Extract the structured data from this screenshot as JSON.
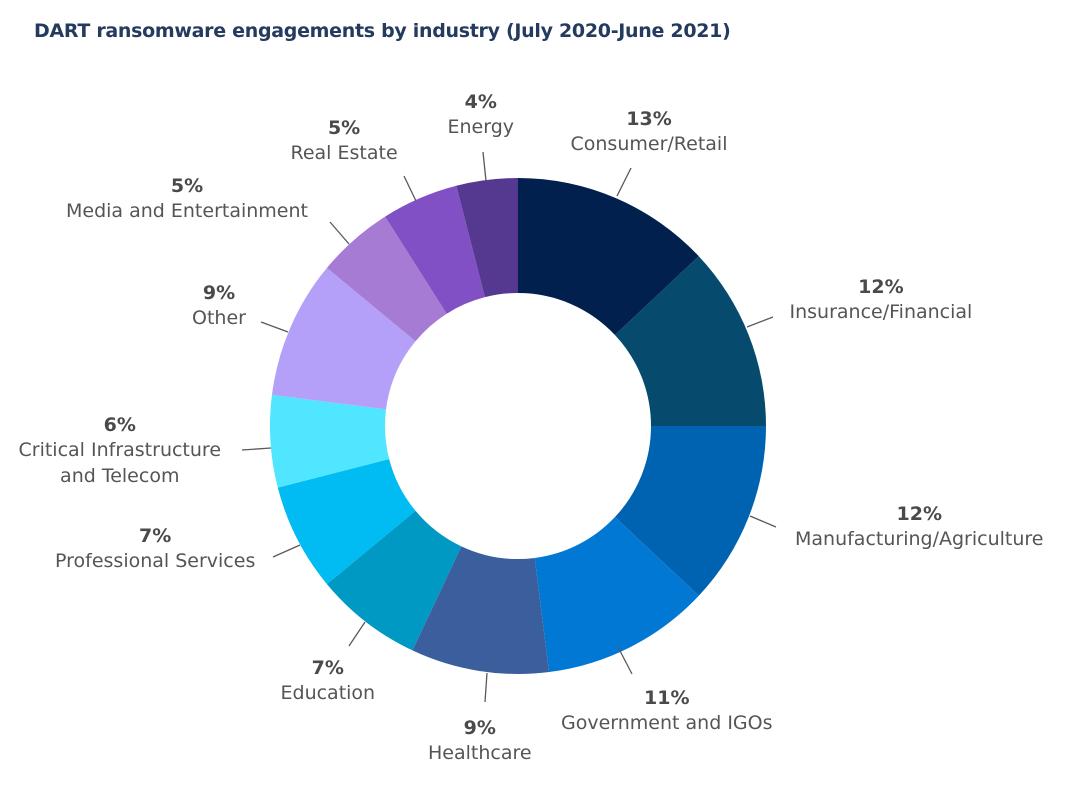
{
  "chart_data": {
    "type": "pie",
    "variant": "donut",
    "title": "DART ransomware engagements by industry (July 2020-June 2021)",
    "start": "top (12 o'clock), clockwise",
    "slices": [
      {
        "label": "Consumer/Retail",
        "pct_label": "13%",
        "value": 13,
        "color": "#02204d"
      },
      {
        "label": "Insurance/Financial",
        "pct_label": "12%",
        "value": 12,
        "color": "#064a6d"
      },
      {
        "label": "Manufacturing/Agriculture",
        "pct_label": "12%",
        "value": 12,
        "color": "#0063b1"
      },
      {
        "label": "Government and IGOs",
        "pct_label": "11%",
        "value": 11,
        "color": "#0078d4"
      },
      {
        "label": "Healthcare",
        "pct_label": "9%",
        "value": 9,
        "color": "#3a5f9c"
      },
      {
        "label": "Education",
        "pct_label": "7%",
        "value": 7,
        "color": "#0099c4"
      },
      {
        "label": "Professional Services",
        "pct_label": "7%",
        "value": 7,
        "color": "#00bcf2"
      },
      {
        "label": "Critical Infrastructure and Telecom",
        "label_lines": [
          "Critical Infrastructure",
          "and Telecom"
        ],
        "pct_label": "6%",
        "value": 6,
        "color": "#50e6ff"
      },
      {
        "label": "Other",
        "pct_label": "9%",
        "value": 9,
        "color": "#b4a0f8"
      },
      {
        "label": "Media and Entertainment",
        "pct_label": "5%",
        "value": 5,
        "color": "#a67bd4"
      },
      {
        "label": "Real Estate",
        "pct_label": "5%",
        "value": 5,
        "color": "#8150c4"
      },
      {
        "label": "Energy",
        "pct_label": "4%",
        "value": 4,
        "color": "#55388f"
      }
    ]
  }
}
